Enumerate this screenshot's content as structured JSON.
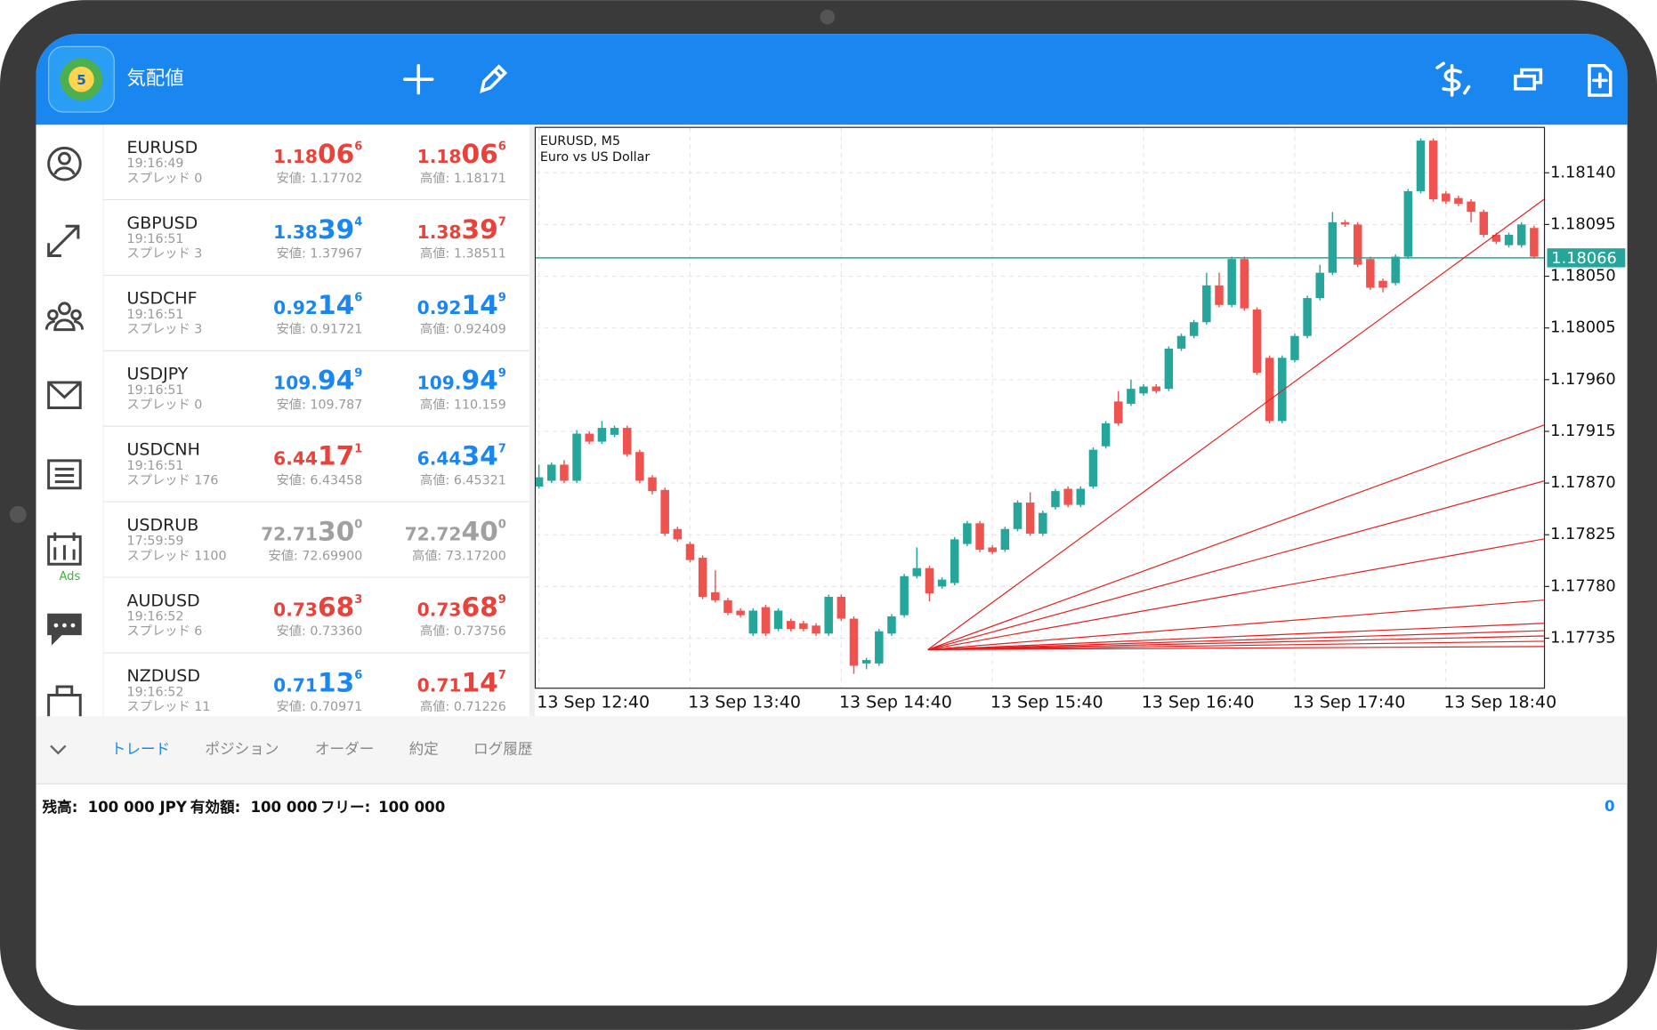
{
  "top_bar": {
    "title": "気配値"
  },
  "sidebar": {
    "ads": "Ads"
  },
  "quotes": {
    "bid_low_prefix": null,
    "rows": [
      {
        "symbol": "EURUSD",
        "time": "19:16:49",
        "spread": "スプレッド 0",
        "bid": [
          "1.18",
          "06",
          "6"
        ],
        "bid_color": "#e8423b",
        "ask": [
          "1.18",
          "06",
          "6"
        ],
        "ask_color": "#e8423b",
        "low": "安値: 1.17702",
        "high": "高値: 1.18171"
      },
      {
        "symbol": "GBPUSD",
        "time": "19:16:51",
        "spread": "スプレッド 3",
        "bid": [
          "1.38",
          "39",
          "4"
        ],
        "bid_color": "#1a87f0",
        "ask": [
          "1.38",
          "39",
          "7"
        ],
        "ask_color": "#e8423b",
        "low": "安値: 1.37967",
        "high": "高値: 1.38511"
      },
      {
        "symbol": "USDCHF",
        "time": "19:16:51",
        "spread": "スプレッド 3",
        "bid": [
          "0.92",
          "14",
          "6"
        ],
        "bid_color": "#1a87f0",
        "ask": [
          "0.92",
          "14",
          "9"
        ],
        "ask_color": "#1a87f0",
        "low": "安値: 0.91721",
        "high": "高値: 0.92409"
      },
      {
        "symbol": "USDJPY",
        "time": "19:16:51",
        "spread": "スプレッド 0",
        "bid": [
          "109.",
          "94",
          "9"
        ],
        "bid_color": "#1a87f0",
        "ask": [
          "109.",
          "94",
          "9"
        ],
        "ask_color": "#1a87f0",
        "low": "安値: 109.787",
        "high": "高値: 110.159"
      },
      {
        "symbol": "USDCNH",
        "time": "19:16:51",
        "spread": "スプレッド 176",
        "bid": [
          "6.44",
          "17",
          "1"
        ],
        "bid_color": "#e8423b",
        "ask": [
          "6.44",
          "34",
          "7"
        ],
        "ask_color": "#1a87f0",
        "low": "安値: 6.43458",
        "high": "高値: 6.45321"
      },
      {
        "symbol": "USDRUB",
        "time": "17:59:59",
        "spread": "スプレッド 1100",
        "bid": [
          "72.71",
          "30",
          "0"
        ],
        "bid_color": "#a0a0a0",
        "ask": [
          "72.72",
          "40",
          "0"
        ],
        "ask_color": "#a0a0a0",
        "low": "安値: 72.69900",
        "high": "高値: 73.17200"
      },
      {
        "symbol": "AUDUSD",
        "time": "19:16:52",
        "spread": "スプレッド 6",
        "bid": [
          "0.73",
          "68",
          "3"
        ],
        "bid_color": "#e8423b",
        "ask": [
          "0.73",
          "68",
          "9"
        ],
        "ask_color": "#e8423b",
        "low": "安値: 0.73360",
        "high": "高値: 0.73756"
      },
      {
        "symbol": "NZDUSD",
        "time": "19:16:52",
        "spread": "スプレッド 11",
        "bid": [
          "0.71",
          "13",
          "6"
        ],
        "bid_color": "#1a87f0",
        "ask": [
          "0.71",
          "14",
          "7"
        ],
        "ask_color": "#e8423b",
        "low": "安値: 0.70971",
        "high": "高値: 0.71226"
      }
    ]
  },
  "chart_data": {
    "type": "candlestick",
    "title": "EURUSD, M5",
    "subtitle": "Euro vs US Dollar",
    "up_color": "#26a69a",
    "down_color": "#ef5350",
    "grid": true,
    "ylim": [
      1.17691,
      1.1818
    ],
    "yticks": [
      {
        "value": 1.1814,
        "label": "1.18140"
      },
      1.18095,
      {
        "value": 1.1805,
        "label": "1.18050"
      },
      1.18005,
      {
        "value": 1.1796,
        "label": "1.17960"
      },
      1.17915,
      {
        "value": 1.1787,
        "label": "1.17870"
      },
      1.17825,
      {
        "value": 1.1778,
        "label": "1.17780"
      },
      1.17735
    ],
    "xticks": [
      {
        "value": 0,
        "label": "13 Sep 12:40"
      },
      {
        "value": 12,
        "label": "13 Sep 13:40"
      },
      {
        "value": 24,
        "label": "13 Sep 14:40"
      },
      {
        "value": 36,
        "label": "13 Sep 15:40"
      },
      {
        "value": 48,
        "label": "13 Sep 16:40"
      },
      {
        "value": 60,
        "label": "13 Sep 17:40"
      },
      {
        "value": 72,
        "label": "13 Sep 18:40"
      }
    ],
    "current_price": 1.18066,
    "current_price_color": "#26a69a",
    "open": [
      1.17867,
      1.17872,
      1.17886,
      1.17872,
      1.17913,
      1.17906,
      1.17912,
      1.17918,
      1.17897,
      1.17875,
      1.17864,
      1.1783,
      1.17817,
      1.17805,
      1.17775,
      1.17768,
      1.17759,
      1.17739,
      1.17762,
      1.17743,
      1.1775,
      1.17748,
      1.17746,
      1.17739,
      1.17771,
      1.17752,
      1.17713,
      1.17713,
      1.17739,
      1.17755,
      1.17789,
      1.17796,
      1.1778,
      1.17783,
      1.17817,
      1.17835,
      1.17814,
      1.17812,
      1.1783,
      1.17853,
      1.17826,
      1.17849,
      1.17865,
      1.17851,
      1.17867,
      1.17902,
      1.17941,
      1.17939,
      1.17948,
      1.17954,
      1.17952,
      1.17987,
      1.17998,
      1.1801,
      1.18042,
      1.18025,
      1.18065,
      1.18021,
      1.17979,
      1.17924,
      1.17977,
      1.17998,
      1.18031,
      1.18053,
      1.18097,
      1.18095,
      1.18065,
      1.18046,
      1.18044,
      1.18067,
      1.18124,
      1.18168,
      1.18122,
      1.18118,
      1.18115,
      1.18106,
      1.18086,
      1.18077,
      1.18077,
      1.18092
    ],
    "high": [
      1.17886,
      1.17888,
      1.1789,
      1.17916,
      1.17915,
      1.17924,
      1.1792,
      1.1792,
      1.17899,
      1.17877,
      1.17866,
      1.17832,
      1.17819,
      1.17807,
      1.17794,
      1.1777,
      1.17761,
      1.17761,
      1.17764,
      1.17761,
      1.17752,
      1.1775,
      1.17748,
      1.17773,
      1.17773,
      1.17754,
      1.17718,
      1.17743,
      1.17756,
      1.17791,
      1.17814,
      1.17798,
      1.17788,
      1.17823,
      1.17837,
      1.17837,
      1.17816,
      1.17832,
      1.17855,
      1.17862,
      1.17846,
      1.17865,
      1.17867,
      1.17867,
      1.17901,
      1.17924,
      1.1795,
      1.1796,
      1.17956,
      1.17956,
      1.17989,
      1.18,
      1.18012,
      1.18053,
      1.18053,
      1.18067,
      1.18067,
      1.18023,
      1.17981,
      1.17981,
      1.18,
      1.18033,
      1.1806,
      1.18106,
      1.18099,
      1.18097,
      1.18067,
      1.18048,
      1.18069,
      1.18126,
      1.1817,
      1.1817,
      1.18124,
      1.1812,
      1.18117,
      1.18108,
      1.18088,
      1.18088,
      1.18097,
      1.18094
    ],
    "low": [
      1.17865,
      1.1787,
      1.1787,
      1.1787,
      1.17904,
      1.17904,
      1.1791,
      1.17893,
      1.1787,
      1.1786,
      1.17824,
      1.17819,
      1.17801,
      1.17769,
      1.17766,
      1.17755,
      1.17753,
      1.17737,
      1.17737,
      1.17741,
      1.17741,
      1.17741,
      1.17737,
      1.17737,
      1.1775,
      1.17704,
      1.17708,
      1.17711,
      1.17737,
      1.17753,
      1.17787,
      1.17767,
      1.17778,
      1.17781,
      1.17815,
      1.1781,
      1.17808,
      1.1781,
      1.17828,
      1.17824,
      1.17824,
      1.17847,
      1.17849,
      1.17849,
      1.17865,
      1.179,
      1.1792,
      1.17937,
      1.17946,
      1.17948,
      1.1795,
      1.17985,
      1.17996,
      1.18008,
      1.18023,
      1.18023,
      1.1802,
      1.17964,
      1.17922,
      1.17922,
      1.17975,
      1.17996,
      1.18029,
      1.18051,
      1.18093,
      1.18058,
      1.18038,
      1.18036,
      1.18042,
      1.18065,
      1.18122,
      1.18115,
      1.18113,
      1.18111,
      1.18097,
      1.18084,
      1.18078,
      1.18075,
      1.18075,
      1.18065
    ],
    "close": [
      1.17875,
      1.17886,
      1.17872,
      1.17913,
      1.17906,
      1.17918,
      1.17918,
      1.17895,
      1.17872,
      1.17863,
      1.17826,
      1.17821,
      1.17803,
      1.17771,
      1.17768,
      1.17757,
      1.17755,
      1.17759,
      1.17739,
      1.17759,
      1.17743,
      1.17743,
      1.17739,
      1.17771,
      1.17752,
      1.17711,
      1.17716,
      1.17741,
      1.17754,
      1.17789,
      1.17796,
      1.17774,
      1.17786,
      1.17821,
      1.17835,
      1.17812,
      1.1781,
      1.1783,
      1.17853,
      1.17826,
      1.17844,
      1.17863,
      1.17851,
      1.17865,
      1.17899,
      1.17922,
      1.17922,
      1.17952,
      1.17954,
      1.1795,
      1.17987,
      1.17998,
      1.1801,
      1.18042,
      1.18025,
      1.18065,
      1.18022,
      1.17966,
      1.17924,
      1.17979,
      1.17998,
      1.18031,
      1.18053,
      1.18097,
      1.18095,
      1.1806,
      1.1804,
      1.1804,
      1.18067,
      1.18124,
      1.18168,
      1.18117,
      1.18115,
      1.18113,
      1.18106,
      1.18086,
      1.1808,
      1.18086,
      1.18095,
      1.18067
    ]
  },
  "tabs": {
    "items": [
      "トレード",
      "ポジション",
      "オーダー",
      "約定",
      "ログ履歴"
    ],
    "active": 0
  },
  "account": {
    "balance_label": "残高:",
    "balance": "100 000 JPY",
    "equity_label": "有効額:",
    "equity": "100 000",
    "free_label": "フリー:",
    "free": "100 000",
    "profit": "0"
  }
}
